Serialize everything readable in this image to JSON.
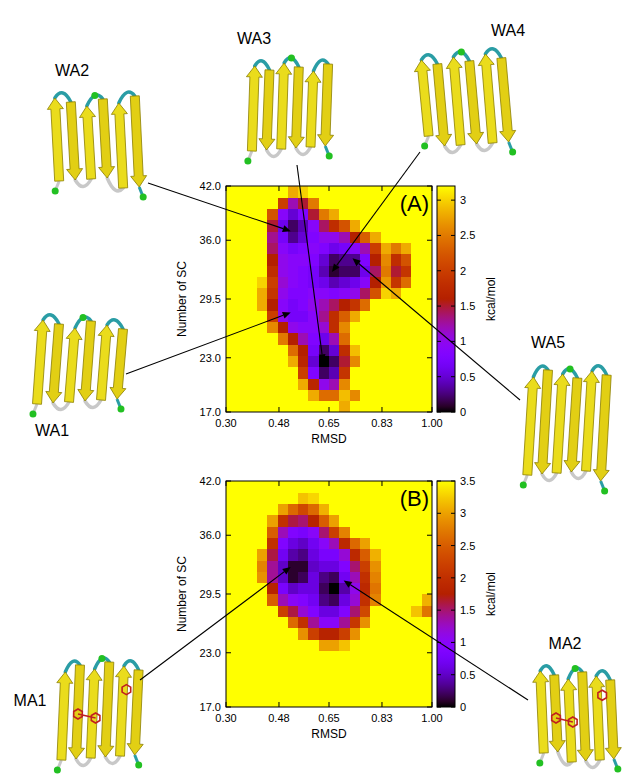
{
  "chart_data": [
    {
      "type": "heatmap",
      "title": "(A)",
      "xlabel": "RMSD",
      "ylabel": "Number of SC",
      "xlim": [
        0.3,
        1.0
      ],
      "ylim": [
        17,
        42
      ],
      "xticks": [
        {
          "value": 0.3,
          "label": "0.30"
        },
        0.48,
        0.65,
        0.83,
        {
          "value": 1.0,
          "label": "1.00"
        }
      ],
      "yticks": [
        {
          "value": 17,
          "label": "17.0"
        },
        {
          "value": 23,
          "label": "23.0"
        },
        29.5,
        {
          "value": 36,
          "label": "36.0"
        },
        {
          "value": 42,
          "label": "42.0"
        }
      ],
      "x_edges": [
        0.3,
        0.335,
        0.37,
        0.405,
        0.44,
        0.475,
        0.51,
        0.545,
        0.58,
        0.615,
        0.65,
        0.685,
        0.72,
        0.755,
        0.79,
        0.825,
        0.86,
        0.895,
        0.93,
        0.965,
        1.0
      ],
      "y_edges": [
        17,
        18.25,
        19.5,
        20.75,
        22,
        23.25,
        24.5,
        25.75,
        27,
        28.25,
        29.5,
        30.75,
        32,
        33.25,
        34.5,
        35.75,
        37,
        38.25,
        39.5,
        40.75,
        42
      ],
      "z": [
        [
          3.2,
          3.2,
          3.2,
          3.2,
          3.2,
          3.2,
          3.2,
          3.2,
          3.2,
          3.2,
          3.2,
          2.8,
          3.2,
          3.2,
          3.2,
          3.2,
          3.2,
          3.2,
          3.2,
          3.2
        ],
        [
          3.2,
          3.2,
          3.2,
          3.2,
          3.2,
          3.2,
          3.2,
          3.2,
          2.8,
          2.4,
          2.4,
          2.9,
          2.6,
          3.2,
          3.2,
          3.2,
          3.2,
          3.2,
          3.2,
          3.2
        ],
        [
          3.2,
          3.2,
          3.2,
          3.2,
          3.2,
          3.2,
          3.2,
          2.8,
          1.7,
          1.0,
          1.2,
          2.6,
          3.2,
          3.2,
          3.2,
          3.2,
          3.2,
          3.2,
          3.2,
          3.2
        ],
        [
          3.2,
          3.2,
          3.2,
          3.2,
          3.2,
          3.2,
          3.2,
          2.0,
          0.8,
          0.2,
          0.4,
          1.9,
          3.2,
          3.2,
          3.2,
          3.2,
          3.2,
          3.2,
          3.2,
          3.2
        ],
        [
          3.2,
          3.2,
          3.2,
          3.2,
          3.2,
          3.2,
          2.8,
          1.7,
          0.5,
          0.0,
          0.2,
          1.5,
          2.6,
          3.2,
          3.2,
          3.2,
          3.2,
          3.2,
          3.2,
          3.2
        ],
        [
          3.2,
          3.2,
          3.2,
          3.2,
          3.2,
          3.2,
          2.4,
          1.6,
          0.7,
          0.2,
          0.5,
          1.8,
          2.9,
          3.2,
          3.2,
          3.2,
          3.2,
          3.2,
          3.2,
          3.2
        ],
        [
          3.2,
          3.2,
          3.2,
          3.2,
          3.2,
          2.5,
          1.6,
          1.2,
          0.8,
          0.6,
          1.2,
          2.4,
          3.2,
          3.2,
          3.2,
          3.2,
          3.2,
          3.2,
          3.2,
          3.2
        ],
        [
          3.2,
          3.2,
          3.2,
          3.2,
          2.6,
          1.6,
          1.0,
          0.9,
          0.9,
          1.1,
          1.8,
          2.6,
          3.2,
          3.2,
          3.2,
          3.2,
          3.2,
          3.2,
          3.2,
          3.2
        ],
        [
          3.2,
          3.2,
          3.2,
          3.2,
          2.0,
          1.0,
          0.7,
          0.7,
          0.9,
          1.3,
          1.8,
          2.3,
          2.8,
          3.2,
          3.2,
          3.2,
          3.2,
          3.2,
          3.2,
          3.2
        ],
        [
          3.2,
          3.2,
          3.2,
          2.8,
          1.6,
          0.9,
          0.7,
          0.8,
          1.0,
          1.2,
          1.4,
          1.6,
          1.9,
          2.4,
          3.2,
          3.2,
          3.2,
          3.2,
          3.2,
          3.2
        ],
        [
          3.2,
          3.2,
          3.2,
          2.8,
          1.9,
          1.0,
          0.8,
          0.8,
          0.9,
          0.9,
          0.8,
          0.9,
          1.0,
          1.4,
          2.2,
          3.0,
          2.8,
          3.2,
          3.2,
          3.2
        ],
        [
          3.2,
          3.2,
          3.2,
          3.0,
          2.0,
          1.1,
          0.9,
          0.8,
          0.7,
          0.6,
          0.4,
          0.5,
          0.6,
          0.9,
          1.6,
          2.7,
          1.9,
          2.4,
          3.2,
          3.2
        ],
        [
          3.2,
          3.2,
          3.2,
          3.2,
          1.8,
          1.0,
          0.9,
          0.8,
          0.7,
          0.4,
          0.1,
          0.2,
          0.2,
          0.6,
          1.4,
          2.5,
          1.5,
          1.9,
          3.2,
          3.2
        ],
        [
          3.2,
          3.2,
          3.2,
          3.2,
          1.6,
          1.0,
          0.9,
          0.9,
          0.8,
          0.5,
          0.2,
          0.3,
          0.3,
          0.8,
          1.6,
          2.6,
          1.8,
          2.2,
          3.2,
          3.2
        ],
        [
          3.2,
          3.2,
          3.2,
          3.2,
          1.4,
          0.9,
          0.7,
          0.8,
          0.9,
          0.8,
          0.6,
          0.7,
          0.9,
          1.2,
          2.0,
          2.8,
          2.5,
          2.8,
          3.2,
          3.2
        ],
        [
          3.2,
          3.2,
          3.2,
          3.2,
          1.3,
          0.7,
          0.3,
          0.5,
          0.8,
          1.0,
          1.0,
          1.2,
          1.6,
          2.3,
          2.8,
          3.2,
          3.2,
          3.2,
          3.2,
          3.2
        ],
        [
          3.2,
          3.2,
          3.2,
          3.2,
          1.5,
          0.6,
          0.2,
          0.4,
          0.9,
          1.4,
          1.8,
          2.2,
          2.8,
          3.2,
          3.2,
          3.2,
          3.2,
          3.2,
          3.2,
          3.2
        ],
        [
          3.2,
          3.2,
          3.2,
          3.2,
          2.2,
          0.9,
          0.5,
          0.8,
          1.5,
          2.5,
          2.8,
          3.2,
          3.2,
          3.2,
          3.2,
          3.2,
          3.2,
          3.2,
          3.2,
          3.2
        ],
        [
          3.2,
          3.2,
          3.2,
          3.2,
          3.2,
          2.0,
          1.2,
          1.5,
          2.5,
          3.2,
          3.2,
          3.2,
          3.2,
          3.2,
          3.2,
          3.2,
          3.2,
          3.2,
          3.2,
          3.2
        ],
        [
          3.2,
          3.2,
          3.2,
          3.2,
          3.2,
          3.2,
          2.8,
          3.0,
          3.2,
          3.2,
          3.2,
          3.2,
          3.2,
          3.2,
          3.2,
          3.2,
          3.2,
          3.2,
          3.2,
          3.2
        ]
      ],
      "colorbar": {
        "range": [
          0,
          3.2
        ],
        "ticks": [
          0,
          0.5,
          1,
          1.5,
          2,
          2.5,
          3
        ],
        "label": "kcal/mol"
      },
      "annotations": [
        {
          "text": "WA1",
          "x": 0.52,
          "y": 28
        },
        {
          "text": "WA2",
          "x": 0.52,
          "y": 37
        },
        {
          "text": "WA3",
          "x": 0.63,
          "y": 22.5
        },
        {
          "text": "WA4",
          "x": 0.66,
          "y": 32.5
        },
        {
          "text": "WA5",
          "x": 0.73,
          "y": 34
        }
      ]
    },
    {
      "type": "heatmap",
      "title": "(B)",
      "xlabel": "RMSD",
      "ylabel": "Number of SC",
      "xlim": [
        0.3,
        1.0
      ],
      "ylim": [
        17,
        42
      ],
      "xticks": [
        {
          "value": 0.3,
          "label": "0.30"
        },
        0.48,
        0.65,
        0.83,
        {
          "value": 1.0,
          "label": "1.00"
        }
      ],
      "yticks": [
        {
          "value": 17,
          "label": "17.0"
        },
        {
          "value": 23,
          "label": "23.0"
        },
        29.5,
        {
          "value": 36,
          "label": "36.0"
        },
        {
          "value": 42,
          "label": "42.0"
        }
      ],
      "x_edges": [
        0.3,
        0.335,
        0.37,
        0.405,
        0.44,
        0.475,
        0.51,
        0.545,
        0.58,
        0.615,
        0.65,
        0.685,
        0.72,
        0.755,
        0.79,
        0.825,
        0.86,
        0.895,
        0.93,
        0.965,
        1.0
      ],
      "y_edges": [
        17,
        18.25,
        19.5,
        20.75,
        22,
        23.25,
        24.5,
        25.75,
        27,
        28.25,
        29.5,
        30.75,
        32,
        33.25,
        34.5,
        35.75,
        37,
        38.25,
        39.5,
        40.75,
        42
      ],
      "z": [
        [
          3.5,
          3.5,
          3.5,
          3.5,
          3.5,
          3.5,
          3.5,
          3.5,
          3.5,
          3.5,
          3.5,
          3.5,
          3.5,
          3.5,
          3.5,
          3.5,
          3.5,
          3.5,
          3.5,
          3.5
        ],
        [
          3.5,
          3.5,
          3.5,
          3.5,
          3.5,
          3.5,
          3.5,
          3.5,
          3.5,
          3.5,
          3.5,
          3.5,
          3.5,
          3.5,
          3.5,
          3.5,
          3.5,
          3.5,
          3.5,
          3.5
        ],
        [
          3.5,
          3.5,
          3.5,
          3.5,
          3.5,
          3.5,
          3.5,
          3.5,
          3.5,
          3.5,
          3.5,
          3.5,
          3.5,
          3.5,
          3.5,
          3.5,
          3.5,
          3.5,
          3.5,
          3.5
        ],
        [
          3.5,
          3.5,
          3.5,
          3.5,
          3.5,
          3.5,
          3.5,
          3.5,
          3.5,
          3.5,
          3.5,
          3.5,
          3.5,
          3.5,
          3.5,
          3.5,
          3.5,
          3.5,
          3.5,
          3.5
        ],
        [
          3.5,
          3.5,
          3.5,
          3.5,
          3.5,
          3.5,
          3.5,
          3.5,
          3.5,
          3.5,
          3.5,
          3.5,
          3.5,
          3.5,
          3.5,
          3.5,
          3.5,
          3.5,
          3.5,
          3.5
        ],
        [
          3.5,
          3.5,
          3.5,
          3.5,
          3.5,
          3.5,
          3.5,
          3.5,
          3.5,
          3.0,
          3.0,
          3.2,
          3.5,
          3.5,
          3.5,
          3.5,
          3.5,
          3.5,
          3.5,
          3.5
        ],
        [
          3.5,
          3.5,
          3.5,
          3.5,
          3.5,
          3.5,
          3.5,
          2.9,
          2.2,
          1.8,
          1.8,
          2.2,
          2.9,
          3.5,
          3.5,
          3.5,
          3.5,
          3.5,
          3.5,
          3.5
        ],
        [
          3.5,
          3.5,
          3.5,
          3.5,
          3.5,
          3.5,
          2.6,
          2.0,
          1.4,
          1.0,
          1.0,
          1.4,
          2.1,
          2.9,
          3.5,
          3.5,
          3.5,
          3.5,
          3.5,
          3.5
        ],
        [
          3.5,
          3.5,
          3.5,
          3.5,
          3.5,
          2.2,
          1.6,
          1.2,
          0.9,
          0.6,
          0.6,
          0.9,
          1.5,
          2.3,
          3.5,
          3.5,
          3.5,
          3.5,
          3.2,
          2.7
        ],
        [
          3.5,
          3.5,
          3.5,
          3.5,
          2.5,
          1.3,
          1.0,
          0.9,
          0.7,
          0.3,
          0.2,
          0.6,
          1.2,
          2.0,
          2.8,
          3.5,
          3.5,
          3.5,
          3.5,
          3.1
        ],
        [
          3.5,
          3.5,
          3.5,
          3.5,
          1.8,
          0.8,
          0.5,
          0.6,
          0.6,
          0.2,
          0.0,
          0.4,
          1.1,
          1.9,
          2.7,
          3.5,
          3.5,
          3.5,
          3.5,
          3.5
        ],
        [
          3.5,
          3.5,
          3.5,
          2.9,
          1.4,
          0.5,
          0.1,
          0.2,
          0.6,
          0.3,
          0.2,
          0.7,
          1.3,
          2.0,
          2.8,
          3.5,
          3.5,
          3.5,
          3.5,
          3.5
        ],
        [
          3.5,
          3.5,
          3.5,
          2.8,
          1.4,
          0.5,
          0.1,
          0.1,
          0.5,
          0.6,
          0.6,
          0.9,
          1.5,
          2.2,
          2.9,
          3.5,
          3.5,
          3.5,
          3.5,
          3.5
        ],
        [
          3.5,
          3.5,
          3.5,
          3.0,
          1.6,
          0.7,
          0.4,
          0.3,
          0.6,
          0.8,
          0.8,
          1.2,
          1.9,
          2.5,
          3.1,
          3.5,
          3.5,
          3.5,
          3.5,
          3.5
        ],
        [
          3.5,
          3.5,
          3.5,
          3.5,
          2.0,
          0.9,
          0.6,
          0.5,
          0.7,
          1.0,
          1.3,
          1.9,
          2.6,
          3.0,
          3.5,
          3.5,
          3.5,
          3.5,
          3.5,
          3.5
        ],
        [
          3.5,
          3.5,
          3.5,
          3.5,
          2.5,
          1.3,
          0.9,
          0.8,
          1.0,
          1.5,
          2.2,
          2.8,
          3.5,
          3.5,
          3.5,
          3.5,
          3.5,
          3.5,
          3.5,
          3.5
        ],
        [
          3.5,
          3.5,
          3.5,
          3.5,
          3.0,
          2.0,
          1.6,
          1.5,
          1.8,
          2.5,
          3.0,
          3.5,
          3.5,
          3.5,
          3.5,
          3.5,
          3.5,
          3.5,
          3.5,
          3.5
        ],
        [
          3.5,
          3.5,
          3.5,
          3.5,
          3.5,
          3.0,
          2.6,
          2.3,
          2.6,
          3.1,
          3.5,
          3.5,
          3.5,
          3.5,
          3.5,
          3.5,
          3.5,
          3.5,
          3.5,
          3.5
        ],
        [
          3.5,
          3.5,
          3.5,
          3.5,
          3.5,
          3.5,
          3.5,
          3.2,
          3.3,
          3.5,
          3.5,
          3.5,
          3.5,
          3.5,
          3.5,
          3.5,
          3.5,
          3.5,
          3.5,
          3.5
        ],
        [
          3.5,
          3.5,
          3.5,
          3.5,
          3.5,
          3.5,
          3.5,
          3.5,
          3.5,
          3.5,
          3.5,
          3.5,
          3.5,
          3.5,
          3.5,
          3.5,
          3.5,
          3.5,
          3.5,
          3.5
        ]
      ],
      "colorbar": {
        "range": [
          0,
          3.5
        ],
        "ticks": [
          0,
          0.5,
          1,
          1.5,
          2,
          2.5,
          3,
          3.5
        ],
        "label": "kcal/mol"
      },
      "annotations": [
        {
          "text": "MA1",
          "x": 0.52,
          "y": 32.5
        },
        {
          "text": "MA2",
          "x": 0.7,
          "y": 31
        }
      ]
    }
  ]
}
